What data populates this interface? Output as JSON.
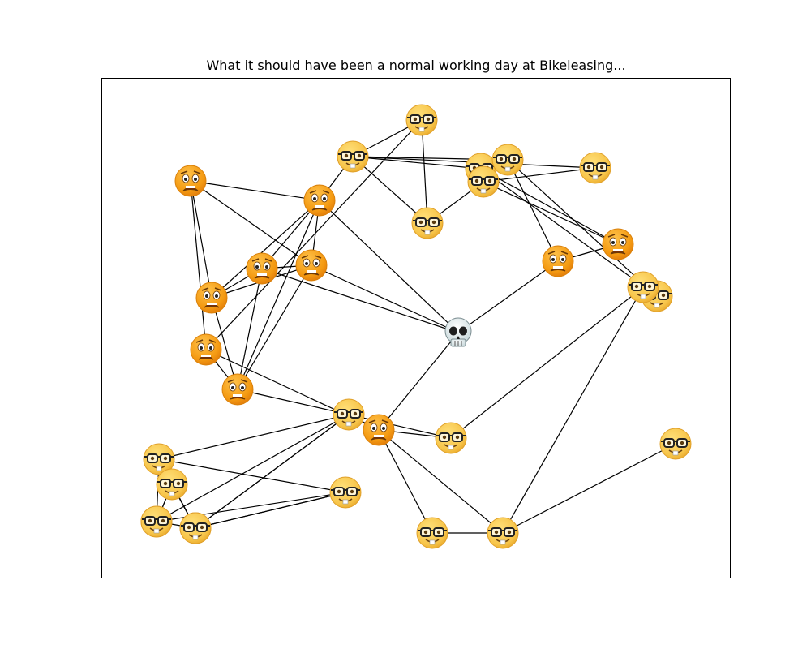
{
  "title": "What it should have been a normal working day at Bikeleasing...",
  "node_types": {
    "nerd": "nerd-face-emoji",
    "worried": "worried-face-emoji",
    "skull": "skull-emoji"
  },
  "colors": {
    "nerd_face": "#f7c54a",
    "worried_face": "#f49a12",
    "skull": "#d9e6e8",
    "edge": "#000000",
    "frame": "#000000"
  },
  "nodes": [
    {
      "id": "n1",
      "type": "nerd"
    },
    {
      "id": "n2",
      "type": "nerd"
    },
    {
      "id": "n3",
      "type": "nerd"
    },
    {
      "id": "n4",
      "type": "nerd"
    },
    {
      "id": "n5",
      "type": "nerd"
    },
    {
      "id": "n6",
      "type": "nerd"
    },
    {
      "id": "n7",
      "type": "worried"
    },
    {
      "id": "n8",
      "type": "worried"
    },
    {
      "id": "n9",
      "type": "nerd"
    },
    {
      "id": "n10",
      "type": "worried"
    },
    {
      "id": "n11",
      "type": "worried"
    },
    {
      "id": "n12",
      "type": "worried"
    },
    {
      "id": "n13",
      "type": "worried"
    },
    {
      "id": "n14",
      "type": "worried"
    },
    {
      "id": "n15",
      "type": "nerd"
    },
    {
      "id": "n16",
      "type": "nerd"
    },
    {
      "id": "n17",
      "type": "worried"
    },
    {
      "id": "n18",
      "type": "skull"
    },
    {
      "id": "n19",
      "type": "worried"
    },
    {
      "id": "n20",
      "type": "nerd"
    },
    {
      "id": "n21",
      "type": "nerd"
    },
    {
      "id": "n22",
      "type": "worried"
    },
    {
      "id": "n23",
      "type": "nerd"
    },
    {
      "id": "n24",
      "type": "nerd"
    },
    {
      "id": "n25",
      "type": "nerd"
    },
    {
      "id": "n26",
      "type": "nerd"
    },
    {
      "id": "n27",
      "type": "nerd"
    },
    {
      "id": "n28",
      "type": "nerd"
    },
    {
      "id": "n29",
      "type": "nerd"
    },
    {
      "id": "n30",
      "type": "nerd"
    },
    {
      "id": "n31",
      "type": "nerd"
    },
    {
      "id": "n32",
      "type": "nerd"
    }
  ],
  "edges": [
    [
      "n1",
      "n2"
    ],
    [
      "n1",
      "n4"
    ],
    [
      "n1",
      "n13"
    ],
    [
      "n2",
      "n3"
    ],
    [
      "n2",
      "n4"
    ],
    [
      "n2",
      "n5"
    ],
    [
      "n2",
      "n9"
    ],
    [
      "n2",
      "n8"
    ],
    [
      "n4",
      "n6"
    ],
    [
      "n5",
      "n6"
    ],
    [
      "n5",
      "n17"
    ],
    [
      "n5",
      "n20"
    ],
    [
      "n3",
      "n20"
    ],
    [
      "n3",
      "n19"
    ],
    [
      "n6",
      "n19"
    ],
    [
      "n6",
      "n9"
    ],
    [
      "n7",
      "n11"
    ],
    [
      "n7",
      "n12"
    ],
    [
      "n7",
      "n13"
    ],
    [
      "n7",
      "n8"
    ],
    [
      "n8",
      "n11"
    ],
    [
      "n8",
      "n12"
    ],
    [
      "n8",
      "n10"
    ],
    [
      "n8",
      "n14"
    ],
    [
      "n8",
      "n18"
    ],
    [
      "n10",
      "n11"
    ],
    [
      "n10",
      "n12"
    ],
    [
      "n10",
      "n14"
    ],
    [
      "n10",
      "n18"
    ],
    [
      "n11",
      "n12"
    ],
    [
      "n11",
      "n14"
    ],
    [
      "n11",
      "n18"
    ],
    [
      "n12",
      "n14"
    ],
    [
      "n13",
      "n14"
    ],
    [
      "n14",
      "n21"
    ],
    [
      "n13",
      "n22"
    ],
    [
      "n17",
      "n19"
    ],
    [
      "n17",
      "n18"
    ],
    [
      "n18",
      "n22"
    ],
    [
      "n15",
      "n21"
    ],
    [
      "n15",
      "n25"
    ],
    [
      "n15",
      "n26"
    ],
    [
      "n15",
      "n27"
    ],
    [
      "n15",
      "n29"
    ],
    [
      "n16",
      "n25"
    ],
    [
      "n16",
      "n26"
    ],
    [
      "n16",
      "n28"
    ],
    [
      "n16",
      "n29"
    ],
    [
      "n21",
      "n22"
    ],
    [
      "n21",
      "n23"
    ],
    [
      "n21",
      "n26"
    ],
    [
      "n21",
      "n28"
    ],
    [
      "n21",
      "n29"
    ],
    [
      "n22",
      "n23"
    ],
    [
      "n22",
      "n30"
    ],
    [
      "n22",
      "n31"
    ],
    [
      "n23",
      "n24"
    ],
    [
      "n24",
      "n31"
    ],
    [
      "n30",
      "n31"
    ],
    [
      "n32",
      "n31"
    ],
    [
      "n25",
      "n28"
    ],
    [
      "n26",
      "n28"
    ],
    [
      "n26",
      "n27"
    ],
    [
      "n27",
      "n28"
    ],
    [
      "n27",
      "n29"
    ]
  ]
}
